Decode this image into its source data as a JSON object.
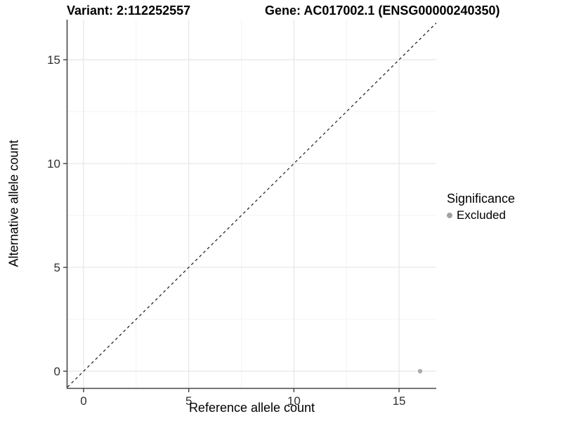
{
  "titles": {
    "variant": "Variant: 2:112252557",
    "gene": "Gene: AC017002.1 (ENSG00000240350)"
  },
  "axes": {
    "x_label": "Reference allele count",
    "y_label": "Alternative allele count"
  },
  "legend": {
    "title": "Significance",
    "items": [
      {
        "label": "Excluded",
        "color": "#a3a3a3"
      }
    ]
  },
  "colors": {
    "background": "#ffffff",
    "major_grid": "#e6e6e6",
    "minor_grid": "#f2f2f2",
    "axis_line": "#474747",
    "tick_mark": "#333333",
    "tick_label": "#303030",
    "reference_line": "#1a1a1a",
    "point": "#a3a3a3"
  },
  "chart_data": {
    "type": "scatter",
    "title_left": "Variant: 2:112252557",
    "title_right": "Gene: AC017002.1 (ENSG00000240350)",
    "xlabel": "Reference allele count",
    "ylabel": "Alternative allele count",
    "xlim": [
      -0.768,
      16.768
    ],
    "ylim": [
      -0.81,
      16.93
    ],
    "x_major_ticks": [
      0,
      5,
      10,
      15
    ],
    "x_minor_ticks": [
      2.5,
      7.5,
      12.5
    ],
    "y_major_ticks": [
      0,
      5,
      10,
      15
    ],
    "y_minor_ticks": [
      2.5,
      7.5,
      12.5
    ],
    "grid": true,
    "legend_position": "right",
    "reference_line": {
      "kind": "identity",
      "style": "dashed",
      "color": "#1a1a1a"
    },
    "series": [
      {
        "name": "Excluded",
        "color": "#a3a3a3",
        "points": [
          {
            "x": 16,
            "y": 0
          }
        ]
      }
    ]
  }
}
